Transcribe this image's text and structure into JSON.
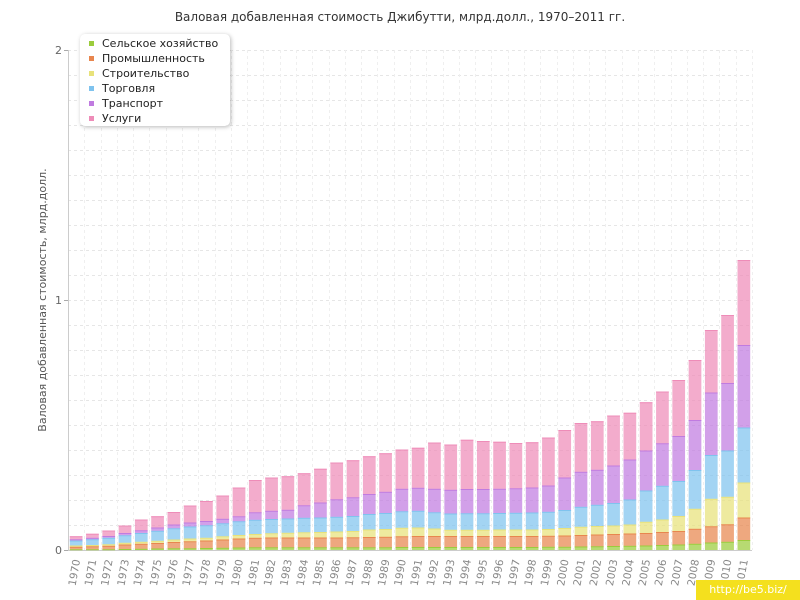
{
  "chart_data": {
    "type": "bar",
    "stacked": true,
    "title": "Валовая добавленная стоимость Джибутти, млрд.долл., 1970–2011 гг.",
    "ylabel": "Валовая добавленная стоимость, млрд.долл.",
    "xlabel": "",
    "ylim": [
      0,
      2
    ],
    "yticks": [
      "0",
      "1",
      "2"
    ],
    "grid": true,
    "legend_position": "top-left",
    "categories": [
      "1970",
      "1971",
      "1972",
      "1973",
      "1974",
      "1975",
      "1976",
      "1977",
      "1978",
      "1979",
      "1980",
      "1981",
      "1982",
      "1983",
      "1984",
      "1985",
      "1986",
      "1987",
      "1988",
      "1989",
      "1990",
      "1991",
      "1992",
      "1993",
      "1994",
      "1995",
      "1996",
      "1997",
      "1998",
      "1999",
      "2000",
      "2001",
      "2002",
      "2003",
      "2004",
      "2005",
      "2006",
      "2007",
      "2008",
      "2009",
      "2010",
      "2011"
    ],
    "series": [
      {
        "name": "Сельское хозяйство",
        "color": "#9bcc3c",
        "values": [
          0.003,
          0.003,
          0.003,
          0.004,
          0.005,
          0.006,
          0.007,
          0.007,
          0.008,
          0.009,
          0.01,
          0.011,
          0.011,
          0.011,
          0.011,
          0.011,
          0.011,
          0.011,
          0.011,
          0.011,
          0.012,
          0.012,
          0.012,
          0.012,
          0.012,
          0.012,
          0.012,
          0.012,
          0.012,
          0.013,
          0.013,
          0.014,
          0.015,
          0.016,
          0.017,
          0.018,
          0.02,
          0.022,
          0.025,
          0.03,
          0.033,
          0.04
        ]
      },
      {
        "name": "Промышленность",
        "color": "#e8864e",
        "values": [
          0.01,
          0.012,
          0.014,
          0.018,
          0.02,
          0.022,
          0.025,
          0.028,
          0.03,
          0.033,
          0.036,
          0.038,
          0.039,
          0.039,
          0.039,
          0.039,
          0.039,
          0.04,
          0.041,
          0.042,
          0.043,
          0.044,
          0.044,
          0.044,
          0.044,
          0.044,
          0.044,
          0.044,
          0.044,
          0.044,
          0.045,
          0.046,
          0.047,
          0.048,
          0.049,
          0.05,
          0.052,
          0.054,
          0.06,
          0.065,
          0.07,
          0.09
        ]
      },
      {
        "name": "Строительство",
        "color": "#e8e27a",
        "values": [
          0.005,
          0.005,
          0.006,
          0.007,
          0.008,
          0.009,
          0.01,
          0.011,
          0.011,
          0.013,
          0.014,
          0.015,
          0.017,
          0.019,
          0.021,
          0.022,
          0.024,
          0.025,
          0.03,
          0.031,
          0.034,
          0.034,
          0.03,
          0.025,
          0.025,
          0.025,
          0.026,
          0.026,
          0.026,
          0.027,
          0.03,
          0.033,
          0.034,
          0.034,
          0.036,
          0.045,
          0.05,
          0.06,
          0.08,
          0.11,
          0.11,
          0.14
        ]
      },
      {
        "name": "Торговля",
        "color": "#7fc3ee",
        "values": [
          0.02,
          0.023,
          0.026,
          0.03,
          0.035,
          0.04,
          0.045,
          0.048,
          0.05,
          0.052,
          0.055,
          0.057,
          0.057,
          0.057,
          0.058,
          0.058,
          0.059,
          0.06,
          0.062,
          0.064,
          0.066,
          0.067,
          0.065,
          0.065,
          0.066,
          0.066,
          0.066,
          0.067,
          0.068,
          0.069,
          0.072,
          0.08,
          0.085,
          0.09,
          0.1,
          0.125,
          0.135,
          0.14,
          0.155,
          0.175,
          0.185,
          0.22
        ]
      },
      {
        "name": "Транспорт",
        "color": "#c07be0",
        "values": [
          0.005,
          0.006,
          0.007,
          0.009,
          0.011,
          0.013,
          0.015,
          0.016,
          0.017,
          0.018,
          0.02,
          0.03,
          0.033,
          0.035,
          0.05,
          0.06,
          0.07,
          0.075,
          0.08,
          0.085,
          0.09,
          0.092,
          0.094,
          0.095,
          0.097,
          0.097,
          0.097,
          0.098,
          0.1,
          0.105,
          0.13,
          0.14,
          0.14,
          0.15,
          0.16,
          0.16,
          0.17,
          0.18,
          0.2,
          0.25,
          0.27,
          0.33
        ]
      },
      {
        "name": "Услуги",
        "color": "#ee8cb8",
        "values": [
          0.012,
          0.016,
          0.022,
          0.03,
          0.043,
          0.045,
          0.05,
          0.068,
          0.08,
          0.093,
          0.115,
          0.129,
          0.133,
          0.134,
          0.128,
          0.135,
          0.147,
          0.148,
          0.151,
          0.154,
          0.157,
          0.16,
          0.185,
          0.181,
          0.197,
          0.192,
          0.188,
          0.181,
          0.181,
          0.192,
          0.19,
          0.195,
          0.194,
          0.2,
          0.187,
          0.193,
          0.207,
          0.224,
          0.24,
          0.25,
          0.272,
          0.34
        ]
      }
    ]
  },
  "watermark": "http://be5.biz/"
}
